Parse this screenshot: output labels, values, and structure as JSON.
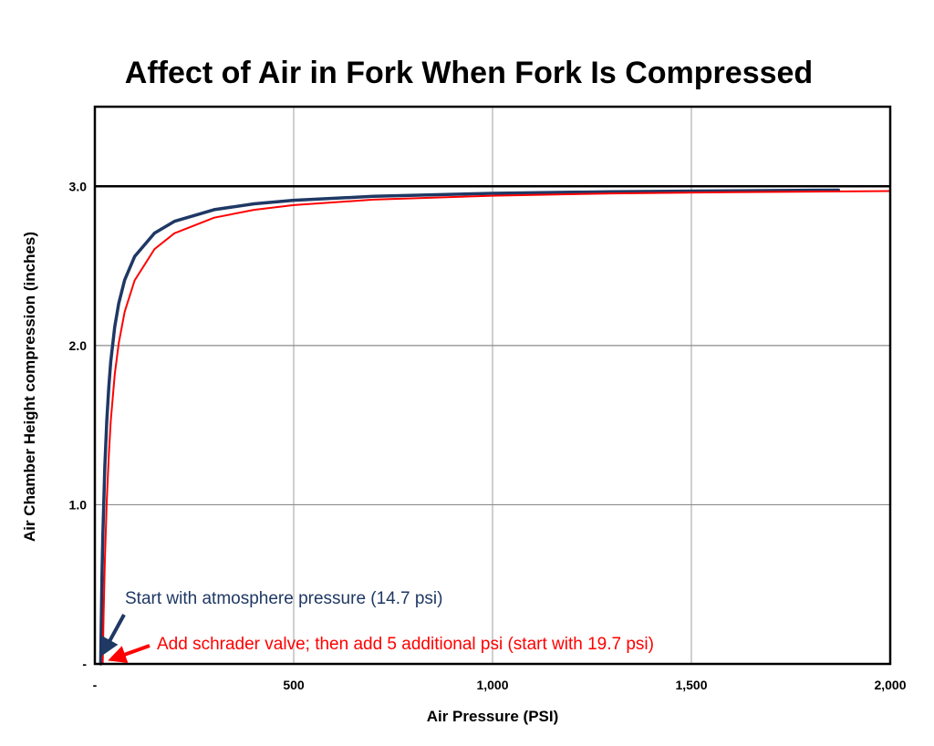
{
  "chart_data": {
    "type": "line",
    "title": "Affect of Air in Fork When Fork Is Compressed",
    "xlabel": "Air Pressure (PSI)",
    "ylabel": "Air Chamber Height compression (inches)",
    "xlim": [
      0,
      2000
    ],
    "ylim": [
      0,
      3.5
    ],
    "x_ticks": [
      0,
      500,
      1000,
      1500,
      2000
    ],
    "x_tick_labels": [
      "-",
      "500",
      "1,000",
      "1,500",
      "2,000"
    ],
    "y_ticks": [
      0,
      1,
      2,
      3
    ],
    "y_tick_labels": [
      "-",
      "1.0",
      "2.0",
      "3.0"
    ],
    "grid": true,
    "reference_line": {
      "y": 3.0,
      "color": "#000000"
    },
    "series": [
      {
        "color": "#1f3864",
        "x": [
          14.7,
          16,
          18,
          20,
          25,
          30,
          35,
          40,
          50,
          60,
          75,
          100,
          150,
          200,
          300,
          400,
          500,
          700,
          1000,
          1300,
          1600,
          1870
        ],
        "y": [
          0,
          0.244,
          0.55,
          0.795,
          1.236,
          1.53,
          1.74,
          1.898,
          2.118,
          2.265,
          2.412,
          2.559,
          2.706,
          2.78,
          2.853,
          2.89,
          2.912,
          2.937,
          2.956,
          2.966,
          2.972,
          2.976
        ]
      },
      {
        "color": "#ff0000",
        "x": [
          19.7,
          22,
          25,
          30,
          35,
          40,
          50,
          60,
          75,
          100,
          150,
          200,
          300,
          400,
          500,
          700,
          1000,
          1300,
          1600,
          2000
        ],
        "y": [
          0,
          0.314,
          0.636,
          1.03,
          1.311,
          1.523,
          1.818,
          2.015,
          2.212,
          2.409,
          2.606,
          2.705,
          2.803,
          2.852,
          2.882,
          2.916,
          2.941,
          2.955,
          2.963,
          2.97
        ]
      }
    ],
    "annotations": [
      {
        "text": "Start with atmosphere pressure (14.7 psi)",
        "color": "#1f3864"
      },
      {
        "text": "Add schrader valve; then add 5 additional psi (start with 19.7 psi)",
        "color": "#ff0000"
      }
    ]
  }
}
